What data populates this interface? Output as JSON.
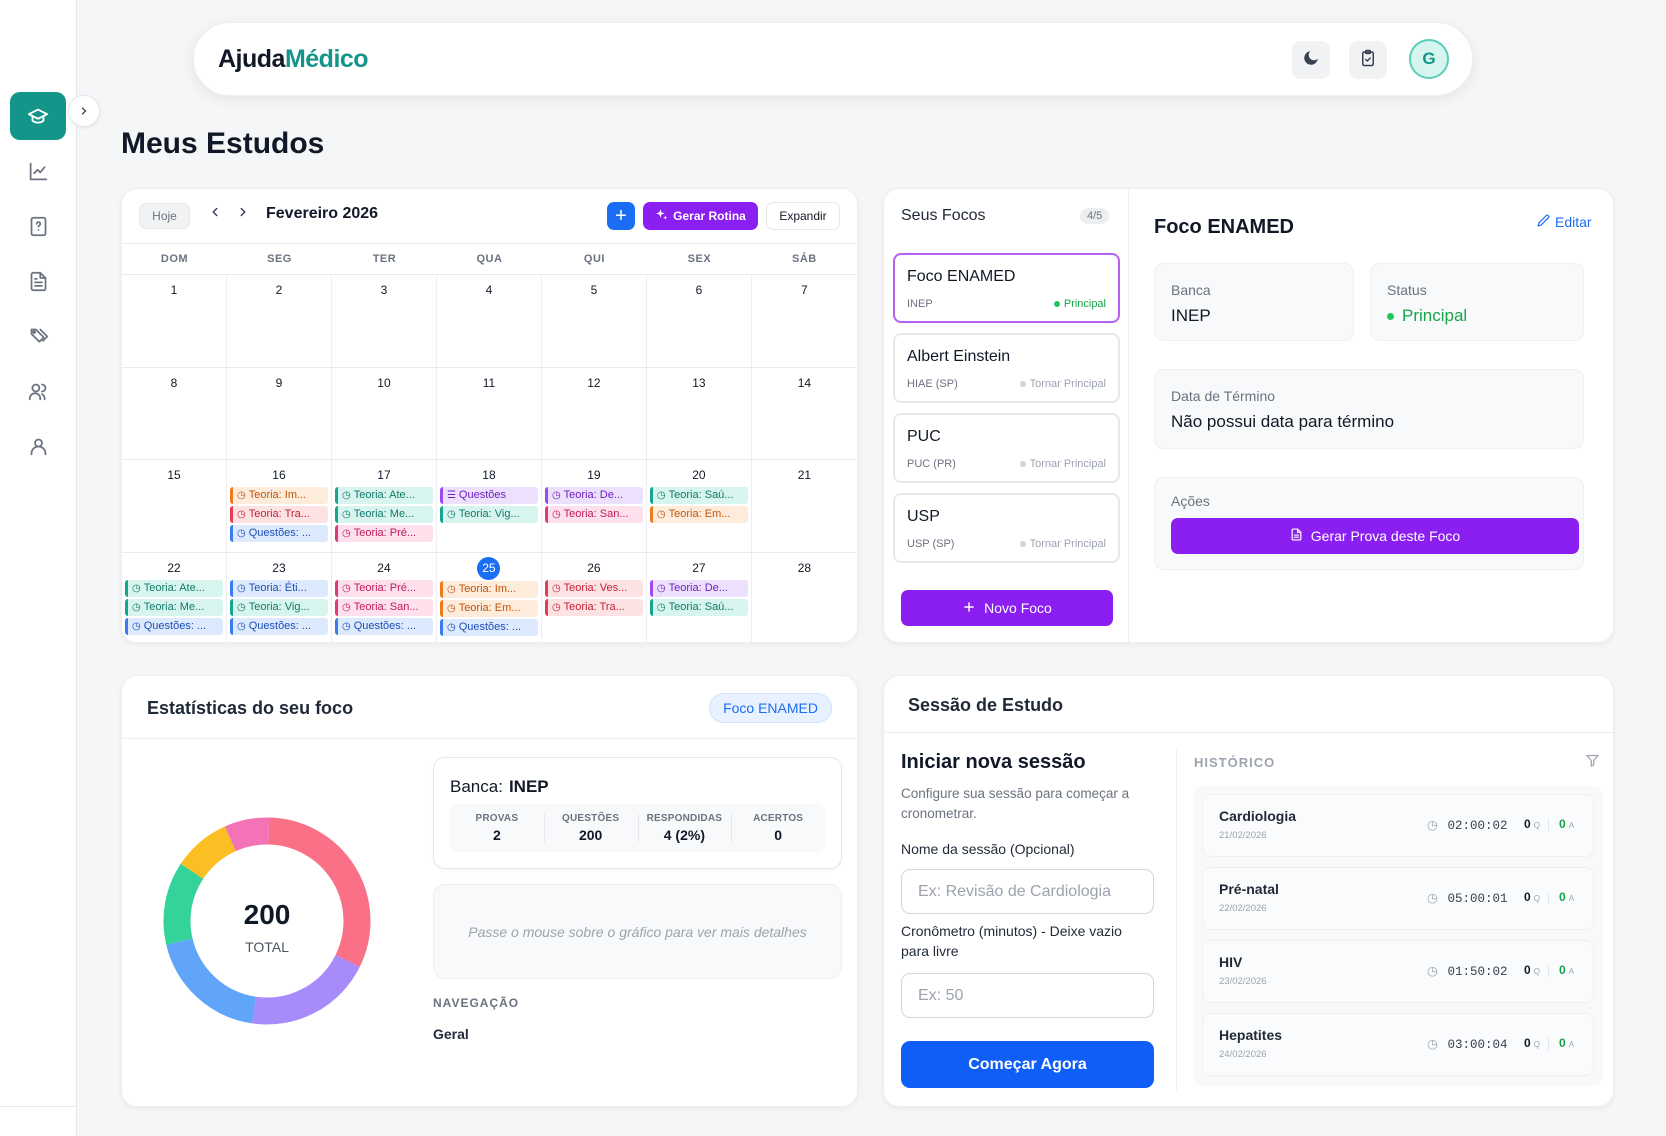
{
  "app": {
    "logo_part1": "Ajuda",
    "logo_part2": "Médico",
    "avatar_initial": "G"
  },
  "sidebar": {
    "items": [
      {
        "icon": "graduation-cap-icon",
        "active": true
      },
      {
        "icon": "chart-line-icon"
      },
      {
        "icon": "question-file-icon"
      },
      {
        "icon": "document-icon"
      },
      {
        "icon": "tags-icon"
      },
      {
        "icon": "users-icon"
      },
      {
        "icon": "user-icon"
      }
    ]
  },
  "page": {
    "title": "Meus Estudos"
  },
  "calendar": {
    "today_label": "Hoje",
    "month_label": "Fevereiro 2026",
    "gerar_label": "Gerar Rotina",
    "expandir_label": "Expandir",
    "weekdays": [
      "DOM",
      "SEG",
      "TER",
      "QUA",
      "QUI",
      "SEX",
      "SÁB"
    ],
    "today": 25,
    "weeks": [
      [
        {
          "d": "1",
          "ev": []
        },
        {
          "d": "2",
          "ev": []
        },
        {
          "d": "3",
          "ev": []
        },
        {
          "d": "4",
          "ev": []
        },
        {
          "d": "5",
          "ev": []
        },
        {
          "d": "6",
          "ev": []
        },
        {
          "d": "7",
          "ev": []
        }
      ],
      [
        {
          "d": "8",
          "ev": []
        },
        {
          "d": "9",
          "ev": []
        },
        {
          "d": "10",
          "ev": []
        },
        {
          "d": "11",
          "ev": []
        },
        {
          "d": "12",
          "ev": []
        },
        {
          "d": "13",
          "ev": []
        },
        {
          "d": "14",
          "ev": []
        }
      ],
      [
        {
          "d": "15",
          "ev": []
        },
        {
          "d": "16",
          "ev": [
            {
              "t": "Teoria: Im...",
              "c": "orange"
            },
            {
              "t": "Teoria: Tra...",
              "c": "red"
            },
            {
              "t": "Questões: ...",
              "c": "blue"
            }
          ]
        },
        {
          "d": "17",
          "ev": [
            {
              "t": "Teoria: Ate...",
              "c": "teal"
            },
            {
              "t": "Teoria: Me...",
              "c": "teal"
            },
            {
              "t": "Teoria: Pré...",
              "c": "pink"
            }
          ]
        },
        {
          "d": "18",
          "ev": [
            {
              "t": "Questões",
              "c": "purple",
              "list": true
            },
            {
              "t": "Teoria: Vig...",
              "c": "teal"
            }
          ]
        },
        {
          "d": "19",
          "ev": [
            {
              "t": "Teoria: De...",
              "c": "purple"
            },
            {
              "t": "Teoria: San...",
              "c": "pink"
            }
          ]
        },
        {
          "d": "20",
          "ev": [
            {
              "t": "Teoria: Saú...",
              "c": "teal"
            },
            {
              "t": "Teoria: Em...",
              "c": "orange"
            }
          ]
        },
        {
          "d": "21",
          "ev": []
        }
      ],
      [
        {
          "d": "22",
          "ev": [
            {
              "t": "Teoria: Ate...",
              "c": "teal"
            },
            {
              "t": "Teoria: Me...",
              "c": "teal"
            },
            {
              "t": "Questões: ...",
              "c": "blue"
            }
          ]
        },
        {
          "d": "23",
          "ev": [
            {
              "t": "Teoria: Éti...",
              "c": "blue"
            },
            {
              "t": "Teoria: Vig...",
              "c": "teal"
            },
            {
              "t": "Questões: ...",
              "c": "blue"
            }
          ]
        },
        {
          "d": "24",
          "ev": [
            {
              "t": "Teoria: Pré...",
              "c": "pink"
            },
            {
              "t": "Teoria: San...",
              "c": "pink"
            },
            {
              "t": "Questões: ...",
              "c": "blue"
            }
          ]
        },
        {
          "d": "25",
          "ev": [
            {
              "t": "Teoria: Im...",
              "c": "orange"
            },
            {
              "t": "Teoria: Em...",
              "c": "orange"
            },
            {
              "t": "Questões: ...",
              "c": "blue"
            }
          ]
        },
        {
          "d": "26",
          "ev": [
            {
              "t": "Teoria: Ves...",
              "c": "red"
            },
            {
              "t": "Teoria: Tra...",
              "c": "red"
            }
          ]
        },
        {
          "d": "27",
          "ev": [
            {
              "t": "Teoria: De...",
              "c": "purple"
            },
            {
              "t": "Teoria: Saú...",
              "c": "teal"
            }
          ]
        },
        {
          "d": "28",
          "ev": []
        }
      ]
    ]
  },
  "focos": {
    "title": "Seus Focos",
    "count": "4/5",
    "items": [
      {
        "name": "Foco ENAMED",
        "banca": "INEP",
        "tag": "Principal",
        "principal": true
      },
      {
        "name": "Albert Einstein",
        "banca": "HIAE (SP)",
        "tag": "Tornar Principal",
        "principal": false
      },
      {
        "name": "PUC",
        "banca": "PUC (PR)",
        "tag": "Tornar Principal",
        "principal": false
      },
      {
        "name": "USP",
        "banca": "USP (SP)",
        "tag": "Tornar Principal",
        "principal": false
      }
    ],
    "novo_label": "Novo Foco",
    "detail": {
      "title": "Foco ENAMED",
      "edit_label": "Editar",
      "banca_label": "Banca",
      "banca_value": "INEP",
      "status_label": "Status",
      "status_value": "Principal",
      "termino_label": "Data de Término",
      "termino_value": "Não possui data para término",
      "acoes_label": "Ações",
      "gerar_prova_label": "Gerar Prova deste Foco"
    }
  },
  "stats": {
    "title": "Estatísticas do seu foco",
    "badge": "Foco ENAMED",
    "total": "200",
    "total_label": "TOTAL",
    "banca_label": "Banca:",
    "banca_value": "INEP",
    "cols": [
      {
        "k": "PROVAS",
        "v": "2"
      },
      {
        "k": "QUESTÕES",
        "v": "200"
      },
      {
        "k": "RESPONDIDAS",
        "v": "4 (2%)"
      },
      {
        "k": "ACERTOS",
        "v": "0"
      }
    ],
    "hover_hint": "Passe o mouse sobre o gráfico para ver mais detalhes",
    "nav_label": "NAVEGAÇÃO",
    "nav_value": "Geral",
    "donut_colors": [
      "#f97087",
      "#a78bfa",
      "#60a5fa",
      "#34d399",
      "#fbbf24",
      "#f472b6"
    ]
  },
  "chart_data": {
    "type": "pie",
    "slices": [
      {
        "color": "#f97087",
        "value": 64
      },
      {
        "color": "#a78bfa",
        "value": 40
      },
      {
        "color": "#60a5fa",
        "value": 38
      },
      {
        "color": "#34d399",
        "value": 26
      },
      {
        "color": "#fbbf24",
        "value": 18
      },
      {
        "color": "#f472b6",
        "value": 14
      }
    ],
    "center_value": "200",
    "center_label": "TOTAL"
  },
  "sessao": {
    "title": "Sessão de Estudo",
    "nova_title": "Iniciar nova sessão",
    "nova_desc": "Configure sua sessão para começar a cronometrar.",
    "nome_label": "Nome da sessão (Opcional)",
    "nome_placeholder": "Ex: Revisão de Cardiologia",
    "crono_label": "Cronômetro (minutos) - Deixe vazio para livre",
    "crono_placeholder": "Ex: 50",
    "comecar_label": "Começar Agora",
    "historico_label": "HISTÓRICO",
    "historico": [
      {
        "name": "Cardiologia",
        "date": "21/02/2026",
        "time": "02:00:02",
        "q": "0",
        "a": "0"
      },
      {
        "name": "Pré-natal",
        "date": "22/02/2026",
        "time": "05:00:01",
        "q": "0",
        "a": "0"
      },
      {
        "name": "HIV",
        "date": "23/02/2026",
        "time": "01:50:02",
        "q": "0",
        "a": "0"
      },
      {
        "name": "Hepatites",
        "date": "24/02/2026",
        "time": "03:00:04",
        "q": "0",
        "a": "0"
      }
    ],
    "q_suffix": "Q",
    "a_suffix": "A"
  }
}
